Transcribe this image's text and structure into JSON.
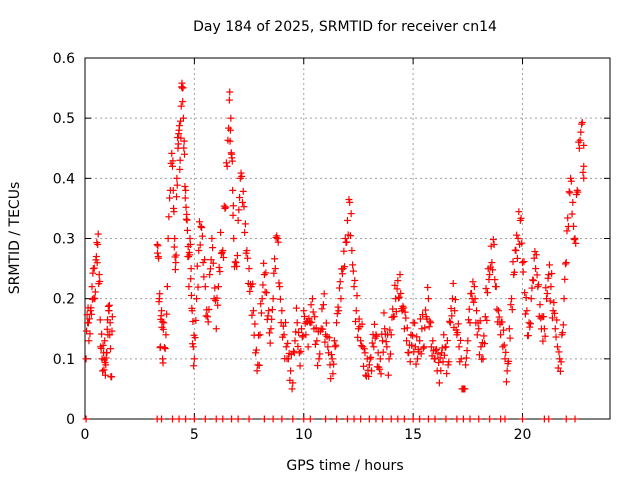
{
  "chart_data": {
    "type": "scatter",
    "title": "Day 184 of 2025, SRMTID for receiver cn14",
    "xlabel": "GPS time / hours",
    "ylabel": "SRMTID / TECUs",
    "xlim": [
      0,
      24
    ],
    "ylim": [
      0,
      0.6
    ],
    "xticks": [
      0,
      5,
      10,
      15,
      20
    ],
    "xtick_labels": [
      "0",
      "5",
      "10",
      "15",
      "20"
    ],
    "yticks": [
      0,
      0.1,
      0.2,
      0.3,
      0.4,
      0.5,
      0.6
    ],
    "ytick_labels": [
      "0",
      "0.1",
      "0.2",
      "0.3",
      "0.4",
      "0.5",
      "0.6"
    ],
    "grid": true,
    "marker": "+",
    "color": "#ff0000",
    "series": [
      {
        "name": "SRMTID",
        "x": [
          0.05,
          0.12,
          0.18,
          0.25,
          0.32,
          0.38,
          0.45,
          0.52,
          0.58,
          0.65,
          0.72,
          0.78,
          0.85,
          0.9,
          0.95,
          1.0,
          1.05,
          1.1,
          1.15,
          1.2,
          1.25,
          3.3,
          3.35,
          3.4,
          3.45,
          3.5,
          3.55,
          3.6,
          3.7,
          3.8,
          3.9,
          4.0,
          4.05,
          4.1,
          4.15,
          4.2,
          4.25,
          4.3,
          4.35,
          4.4,
          4.45,
          4.5,
          4.55,
          4.6,
          4.65,
          4.7,
          4.75,
          4.8,
          4.85,
          4.9,
          4.95,
          5.0,
          5.1,
          5.2,
          5.3,
          5.4,
          5.5,
          5.6,
          5.7,
          5.8,
          5.9,
          6.0,
          6.1,
          6.2,
          6.3,
          6.4,
          6.5,
          6.6,
          6.65,
          6.7,
          6.75,
          6.8,
          6.9,
          7.0,
          7.1,
          7.2,
          7.3,
          7.4,
          7.5,
          7.6,
          7.7,
          7.8,
          7.9,
          8.0,
          8.1,
          8.2,
          8.3,
          8.4,
          8.5,
          8.6,
          8.7,
          8.8,
          8.9,
          9.0,
          9.1,
          9.2,
          9.3,
          9.4,
          9.5,
          9.6,
          9.7,
          9.8,
          9.9,
          10.0,
          10.1,
          10.2,
          10.3,
          10.4,
          10.5,
          10.6,
          10.7,
          10.8,
          10.9,
          11.0,
          11.1,
          11.2,
          11.3,
          11.4,
          11.5,
          11.6,
          11.7,
          11.8,
          11.9,
          12.0,
          12.1,
          12.2,
          12.3,
          12.4,
          12.5,
          12.6,
          12.7,
          12.8,
          12.9,
          13.0,
          13.1,
          13.2,
          13.3,
          13.4,
          13.5,
          13.6,
          13.7,
          13.8,
          13.9,
          14.0,
          14.1,
          14.2,
          14.3,
          14.4,
          14.5,
          14.6,
          14.7,
          14.8,
          14.9,
          15.0,
          15.1,
          15.2,
          15.3,
          15.4,
          15.5,
          15.6,
          15.7,
          15.8,
          15.9,
          16.0,
          16.1,
          16.2,
          16.3,
          16.4,
          16.5,
          16.6,
          16.7,
          16.8,
          16.9,
          17.0,
          17.1,
          17.2,
          17.3,
          17.4,
          17.5,
          17.6,
          17.7,
          17.8,
          17.9,
          18.0,
          18.1,
          18.2,
          18.3,
          18.4,
          18.5,
          18.6,
          18.7,
          18.8,
          18.9,
          19.0,
          19.1,
          19.2,
          19.3,
          19.4,
          19.5,
          19.6,
          19.7,
          19.8,
          19.9,
          20.0,
          20.1,
          20.2,
          20.3,
          20.4,
          20.5,
          20.6,
          20.7,
          20.8,
          20.9,
          21.0,
          21.1,
          21.2,
          21.3,
          21.4,
          21.5,
          21.6,
          21.7,
          21.8,
          21.9,
          22.0,
          22.1,
          22.2,
          22.3,
          22.4,
          22.5,
          22.6,
          22.7,
          22.8
        ],
        "y": [
          0.1,
          0.16,
          0.13,
          0.18,
          0.22,
          0.25,
          0.2,
          0.27,
          0.29,
          0.24,
          0.12,
          0.1,
          0.11,
          0.13,
          0.09,
          0.11,
          0.14,
          0.18,
          0.16,
          0.07,
          0.17,
          0.29,
          0.27,
          0.2,
          0.12,
          0.18,
          0.1,
          0.16,
          0.14,
          0.3,
          0.38,
          0.42,
          0.35,
          0.3,
          0.26,
          0.4,
          0.45,
          0.48,
          0.43,
          0.52,
          0.55,
          0.5,
          0.44,
          0.38,
          0.34,
          0.27,
          0.22,
          0.3,
          0.25,
          0.18,
          0.12,
          0.1,
          0.2,
          0.28,
          0.32,
          0.26,
          0.22,
          0.17,
          0.24,
          0.3,
          0.2,
          0.15,
          0.22,
          0.31,
          0.28,
          0.35,
          0.42,
          0.53,
          0.48,
          0.44,
          0.38,
          0.3,
          0.26,
          0.33,
          0.4,
          0.36,
          0.31,
          0.28,
          0.25,
          0.22,
          0.18,
          0.11,
          0.09,
          0.14,
          0.2,
          0.24,
          0.21,
          0.18,
          0.15,
          0.2,
          0.25,
          0.3,
          0.22,
          0.18,
          0.14,
          0.12,
          0.1,
          0.08,
          0.06,
          0.13,
          0.16,
          0.11,
          0.15,
          0.18,
          0.14,
          0.12,
          0.16,
          0.2,
          0.17,
          0.13,
          0.1,
          0.15,
          0.19,
          0.14,
          0.12,
          0.09,
          0.1,
          0.13,
          0.16,
          0.18,
          0.2,
          0.25,
          0.3,
          0.33,
          0.36,
          0.28,
          0.22,
          0.18,
          0.15,
          0.13,
          0.12,
          0.11,
          0.1,
          0.09,
          0.08,
          0.12,
          0.14,
          0.11,
          0.1,
          0.13,
          0.15,
          0.12,
          0.1,
          0.14,
          0.17,
          0.2,
          0.23,
          0.24,
          0.18,
          0.15,
          0.13,
          0.11,
          0.14,
          0.16,
          0.12,
          0.1,
          0.13,
          0.15,
          0.12,
          0.17,
          0.2,
          0.16,
          0.13,
          0.1,
          0.08,
          0.06,
          0.11,
          0.14,
          0.12,
          0.09,
          0.16,
          0.2,
          0.18,
          0.14,
          0.12,
          0.1,
          0.05,
          0.09,
          0.13,
          0.16,
          0.2,
          0.22,
          0.18,
          0.15,
          0.12,
          0.1,
          0.17,
          0.21,
          0.24,
          0.26,
          0.29,
          0.22,
          0.18,
          0.14,
          0.12,
          0.1,
          0.08,
          0.15,
          0.2,
          0.24,
          0.28,
          0.3,
          0.33,
          0.26,
          0.21,
          0.18,
          0.16,
          0.2,
          0.23,
          0.25,
          0.22,
          0.19,
          0.17,
          0.15,
          0.2,
          0.24,
          0.22,
          0.18,
          0.15,
          0.12,
          0.1,
          0.14,
          0.2,
          0.26,
          0.32,
          0.4,
          0.36,
          0.3,
          0.38,
          0.45,
          0.49,
          0.42
        ]
      }
    ],
    "zero_x": [
      0.05,
      3.3,
      3.5,
      4.0,
      4.3,
      4.6,
      5.0,
      5.5,
      6.0,
      6.3,
      6.7,
      7.0,
      7.5,
      8.2,
      8.6,
      9.0,
      9.5,
      10.0,
      10.3,
      11.0,
      11.5,
      12.0,
      12.3,
      12.6,
      13.0,
      13.3,
      13.6,
      14.0,
      14.3,
      14.6,
      15.0,
      15.3,
      15.7,
      16.0,
      16.5,
      17.0,
      17.3,
      17.6,
      18.0,
      18.5,
      19.0,
      19.2,
      20.0,
      21.0,
      21.2,
      22.0,
      22.4
    ]
  }
}
